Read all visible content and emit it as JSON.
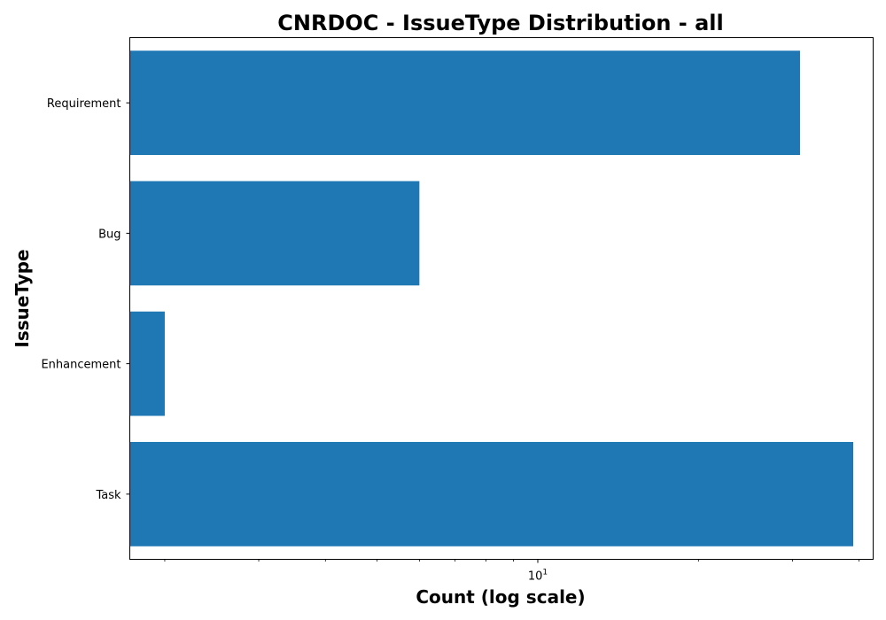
{
  "chart_data": {
    "type": "bar",
    "orientation": "horizontal",
    "title": "CNRDOC - IssueType Distribution - all",
    "xlabel": "Count (log scale)",
    "ylabel": "IssueType",
    "x_scale": "log",
    "xlim": [
      1.72,
      42.5
    ],
    "x_major_ticks": [
      {
        "value": 10,
        "base": "10",
        "exponent": "1"
      }
    ],
    "x_minor_ticks": [
      2,
      3,
      4,
      5,
      6,
      7,
      8,
      9,
      20,
      30,
      40
    ],
    "categories": [
      "Requirement",
      "Bug",
      "Enhancement",
      "Task"
    ],
    "values": [
      31,
      6,
      2,
      39
    ],
    "bar_color": "#1f77b4",
    "grid": false,
    "legend": "none"
  }
}
